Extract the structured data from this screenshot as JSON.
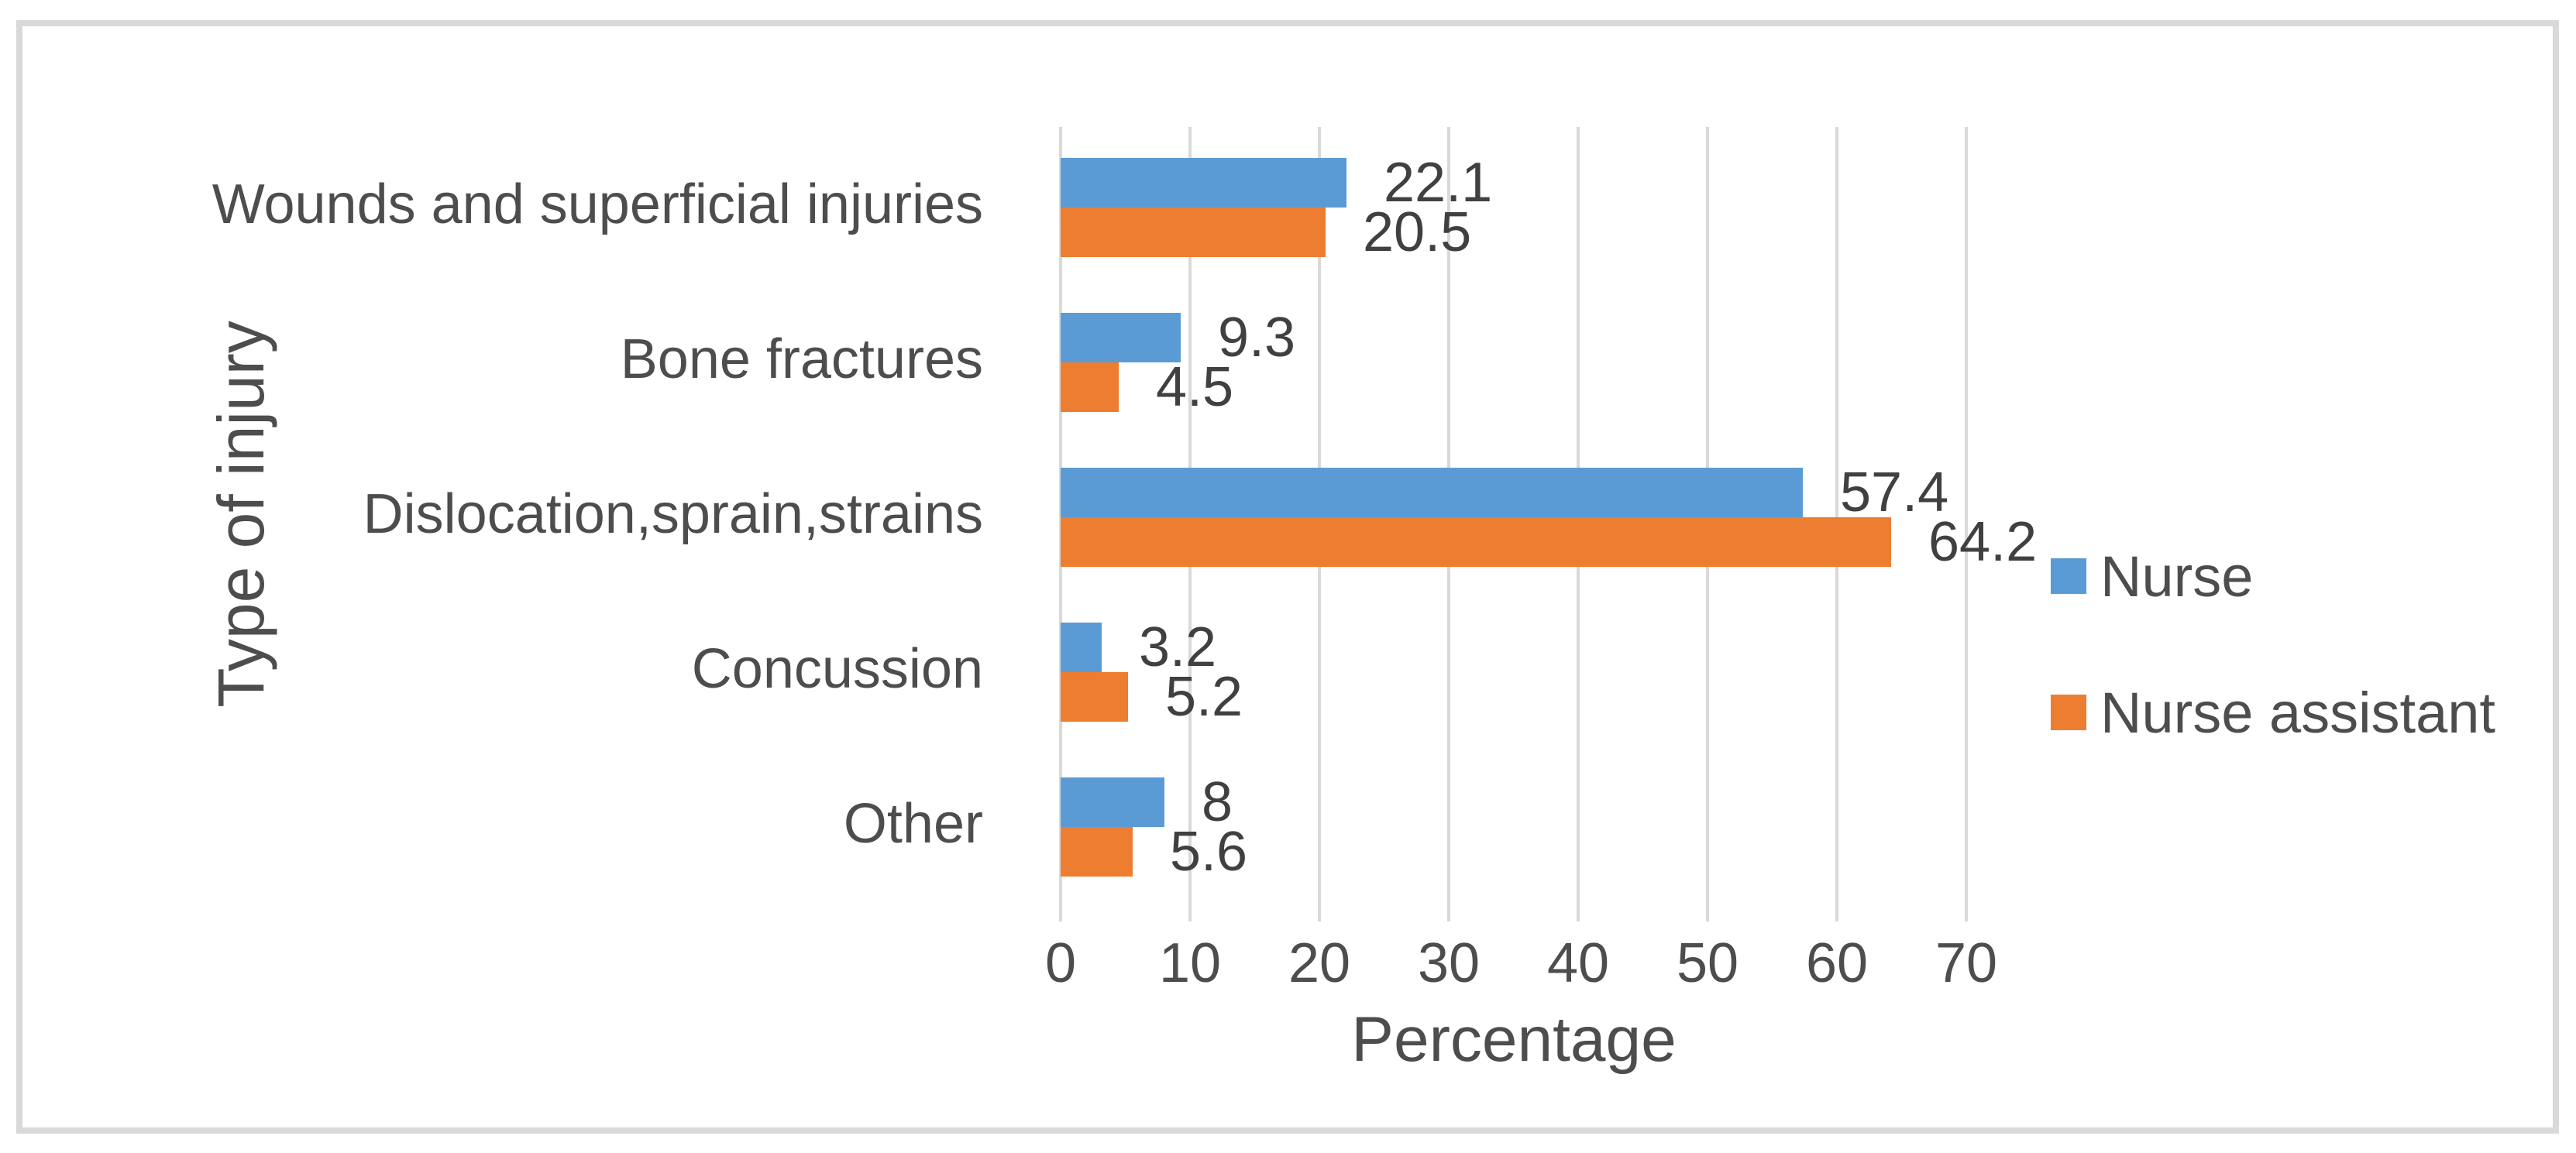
{
  "chart_data": {
    "type": "bar",
    "orientation": "horizontal",
    "title": "",
    "xlabel": "Percentage",
    "ylabel": "Type of injury",
    "categories": [
      "Wounds and superficial injuries",
      "Bone fractures",
      "Dislocation,sprain,strains",
      "Concussion",
      "Other"
    ],
    "series": [
      {
        "name": "Nurse",
        "color": "#5B9BD5",
        "values": [
          22.1,
          9.3,
          57.4,
          3.2,
          8
        ],
        "labels": [
          "22.1",
          "9.3",
          "57.4",
          "3.2",
          "8"
        ]
      },
      {
        "name": "Nurse assistant",
        "color": "#ED7D31",
        "values": [
          20.5,
          4.5,
          64.2,
          5.2,
          5.6
        ],
        "labels": [
          "20.5",
          "4.5",
          "64.2",
          "5.2",
          "5.6"
        ]
      }
    ],
    "xlim": [
      0,
      72
    ],
    "xticks": [
      0,
      10,
      20,
      30,
      40,
      50,
      60,
      70
    ],
    "xtick_labels": [
      "0",
      "10",
      "20",
      "30",
      "40",
      "50",
      "60",
      "70"
    ],
    "grid": "vertical",
    "legend_position": "right"
  },
  "style": {
    "bar_blue": "#5B9BD5",
    "bar_orange": "#ED7D31",
    "gridline_color": "#D9D9D9",
    "frame_border_color": "#D9D9D9",
    "text_color": "#404040",
    "axis_text_color": "#4d4d4d",
    "background": "#ffffff"
  }
}
